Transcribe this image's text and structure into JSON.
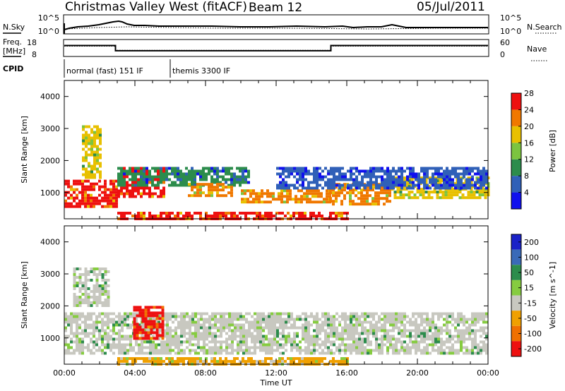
{
  "header": {
    "station": "Christmas Valley West (fitACF)",
    "beam": "Beam 12",
    "date": "05/Jul/2011"
  },
  "noise_panel": {
    "left_label": "N.Sky",
    "right_label": "N.Search",
    "left_ticks": [
      "10^5",
      "10^0"
    ],
    "right_ticks": [
      "10^5",
      "10^0"
    ]
  },
  "freq_panel": {
    "left_label_line1": "Freq.",
    "left_label_line2": "[MHz]",
    "left_ticks": [
      "18",
      "8"
    ],
    "right_ticks": [
      "60",
      "0"
    ],
    "right_label": "Nave",
    "steps": [
      {
        "start": 0,
        "end": 2.9,
        "freq": 15.2,
        "nave": 40
      },
      {
        "start": 2.9,
        "end": 15.1,
        "freq": 10.6,
        "nave": 18
      },
      {
        "start": 15.1,
        "end": 24,
        "freq": 15.2,
        "nave": 40
      }
    ]
  },
  "cpid": {
    "label": "CPID",
    "segments": [
      {
        "start": 0,
        "end": 6.0,
        "text": "normal (fast) 151 IF"
      },
      {
        "start": 6.0,
        "end": 24,
        "text": "themis 3300 IF"
      }
    ]
  },
  "chart_data": [
    {
      "type": "heatmap",
      "title": "Power",
      "ylabel": "Slant Range [km]",
      "xlabel": "",
      "xlim": [
        0,
        24
      ],
      "ylim": [
        180,
        4500
      ],
      "yticks": [
        "1000",
        "2000",
        "3000",
        "4000"
      ],
      "colorbar": {
        "label": "Power [dB]",
        "tick_labels": [
          "4",
          "8",
          "12",
          "16",
          "20",
          "24",
          "28"
        ],
        "colors": [
          "#1010ee",
          "#3060b8",
          "#2c8c4c",
          "#7cc440",
          "#e8c000",
          "#f07800",
          "#ee1010"
        ]
      },
      "bands": [
        {
          "start": 0.0,
          "end": 2.9,
          "low": 600,
          "high": 1400,
          "level": 6
        },
        {
          "start": 1.0,
          "end": 2.0,
          "low": 1500,
          "high": 3100,
          "level": 4
        },
        {
          "start": 3.0,
          "end": 5.6,
          "low": 900,
          "high": 1800,
          "level": 6
        },
        {
          "start": 3.0,
          "end": 10.5,
          "low": 1200,
          "high": 1800,
          "level": 2
        },
        {
          "start": 7.0,
          "end": 9.5,
          "low": 900,
          "high": 1300,
          "level": 5
        },
        {
          "start": 10.0,
          "end": 15.0,
          "low": 700,
          "high": 1100,
          "level": 5
        },
        {
          "start": 15.0,
          "end": 18.5,
          "low": 600,
          "high": 1300,
          "level": 5
        },
        {
          "start": 18.5,
          "end": 24.0,
          "low": 800,
          "high": 1500,
          "level": 4
        },
        {
          "start": 12.0,
          "end": 24.0,
          "low": 1100,
          "high": 1800,
          "level": 1
        },
        {
          "start": 3.0,
          "end": 16.0,
          "low": 200,
          "high": 400,
          "level": 6
        }
      ]
    },
    {
      "type": "heatmap",
      "title": "Velocity",
      "ylabel": "Slant Range [km]",
      "xlabel": "Time UT",
      "xlim": [
        0,
        24
      ],
      "ylim": [
        180,
        4500
      ],
      "yticks": [
        "1000",
        "2000",
        "3000",
        "4000"
      ],
      "xticks": [
        "00:00",
        "04:00",
        "08:00",
        "12:00",
        "16:00",
        "20:00",
        "00:00"
      ],
      "colorbar": {
        "label": "Velocity [m s^-1]",
        "tick_labels": [
          "200",
          "100",
          "50",
          "15",
          "-15",
          "-50",
          "-100",
          "-200"
        ],
        "colors": [
          "#1a22c8",
          "#3a6ab8",
          "#2c8c4c",
          "#86cc40",
          "#c8c8c0",
          "#f0a000",
          "#f07000",
          "#ee1010"
        ]
      },
      "bands": [
        {
          "start": 0.0,
          "end": 24.0,
          "low": 500,
          "high": 1800,
          "level": 4
        },
        {
          "start": 3.9,
          "end": 5.6,
          "low": 1000,
          "high": 2000,
          "level": 7
        },
        {
          "start": 3.0,
          "end": 16.0,
          "low": 200,
          "high": 400,
          "level": 5
        },
        {
          "start": 0.5,
          "end": 2.5,
          "low": 2000,
          "high": 3200,
          "level": 4
        }
      ]
    }
  ]
}
